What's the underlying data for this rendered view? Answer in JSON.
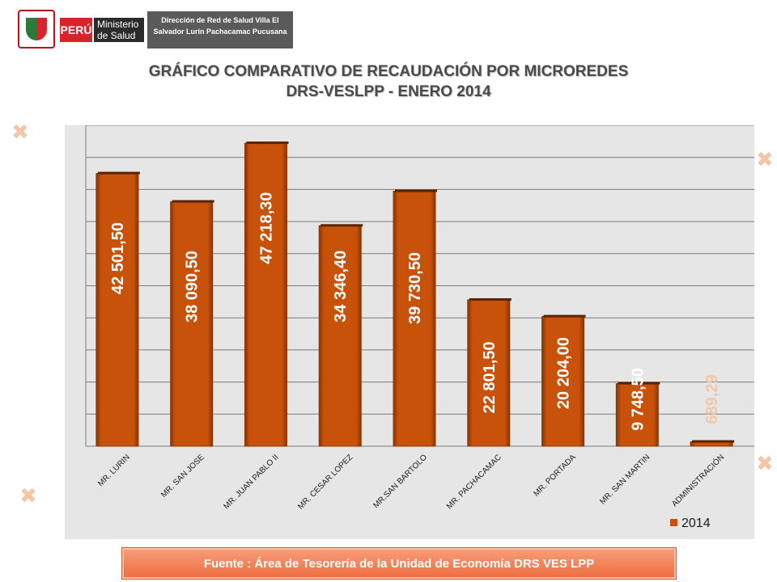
{
  "header": {
    "logo_flag": "PERÚ",
    "logo_ministry": "Ministerio de Salud",
    "box_text": "Dirección de Red de Salud Villa El Salvador Lurín Pachacamac Pucusana"
  },
  "title": {
    "line1": "GRÁFICO COMPARATIVO DE RECAUDACIÓN POR MICROREDES",
    "line2": "DRS-VESLPP - ENERO 2014"
  },
  "footer": {
    "text": "Fuente : Área de Tesorería de la Unidad de Economía DRS VES LPP"
  },
  "colors": {
    "bar": "#c9520a",
    "bar_dark": "#8a3504",
    "plot_bg": "#e6e6e6",
    "label_white": "#ffffff",
    "label_light": "#f2c7a8",
    "grid": "#7a7a7a"
  },
  "chart_data": {
    "type": "bar",
    "title": "",
    "xlabel": "",
    "ylabel": "",
    "ylim": [
      0,
      50000
    ],
    "grid": true,
    "legend_position": "bottom-right",
    "categories": [
      "MR. LURIN",
      "MR. SAN JOSE",
      "MR. JUAN PABLO II",
      "MR. CESAR LOPEZ",
      "MR.SAN BARTOLO",
      "MR. PACHACAMAC",
      "MR. PORTADA",
      "MR. SAN MARTIN",
      "ADMINISTRACIÓN"
    ],
    "series": [
      {
        "name": "2014",
        "values": [
          42501.5,
          38090.5,
          47218.3,
          34346.4,
          39730.5,
          22801.5,
          20204.0,
          9748.5,
          689.29
        ],
        "labels": [
          "42 501,50",
          "38 090,50",
          "47 218,30",
          "34 346,40",
          "39 730,50",
          "22 801,50",
          "20 204,00",
          "9 748,50",
          "689,29"
        ]
      }
    ]
  }
}
